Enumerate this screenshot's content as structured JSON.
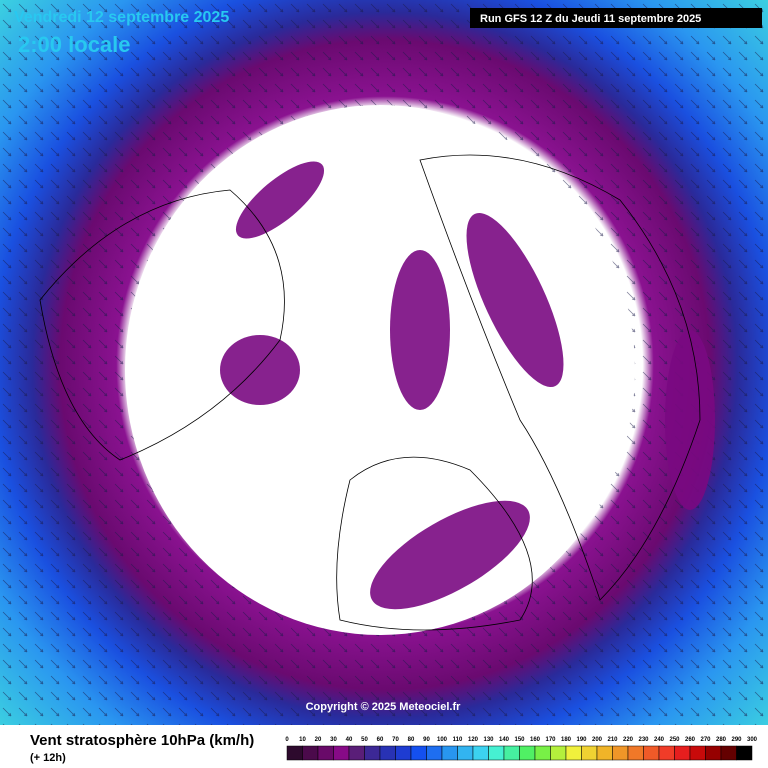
{
  "header": {
    "date": "Vendredi 12 septembre 2025",
    "time": "2:00 locale",
    "run": "Run GFS 12 Z du Jeudi 11 septembre 2025"
  },
  "copyright": "Copyright © 2025 Meteociel.fr",
  "legend": {
    "title": "Vent stratosphère 10hPa (km/h)",
    "lead": "(+ 12h)",
    "ticks": [
      0,
      10,
      20,
      30,
      40,
      50,
      60,
      70,
      80,
      90,
      100,
      110,
      120,
      130,
      140,
      150,
      160,
      170,
      180,
      190,
      200,
      210,
      220,
      230,
      240,
      250,
      260,
      270,
      280,
      290,
      300
    ],
    "colors": [
      "#2d0a2d",
      "#4b0a4b",
      "#690a69",
      "#870a87",
      "#5a1e78",
      "#3c2896",
      "#2832b4",
      "#1e3cd2",
      "#1450f0",
      "#1e6ef0",
      "#2896f0",
      "#32b4f0",
      "#3cd2f0",
      "#46f0d2",
      "#46f0a0",
      "#50f064",
      "#78f046",
      "#b4f03c",
      "#f0f03c",
      "#f0d232",
      "#f0b428",
      "#f09628",
      "#f07828",
      "#f05a28",
      "#f03c28",
      "#e61e1e",
      "#c80a0a",
      "#960000",
      "#640000",
      "#000000"
    ]
  }
}
